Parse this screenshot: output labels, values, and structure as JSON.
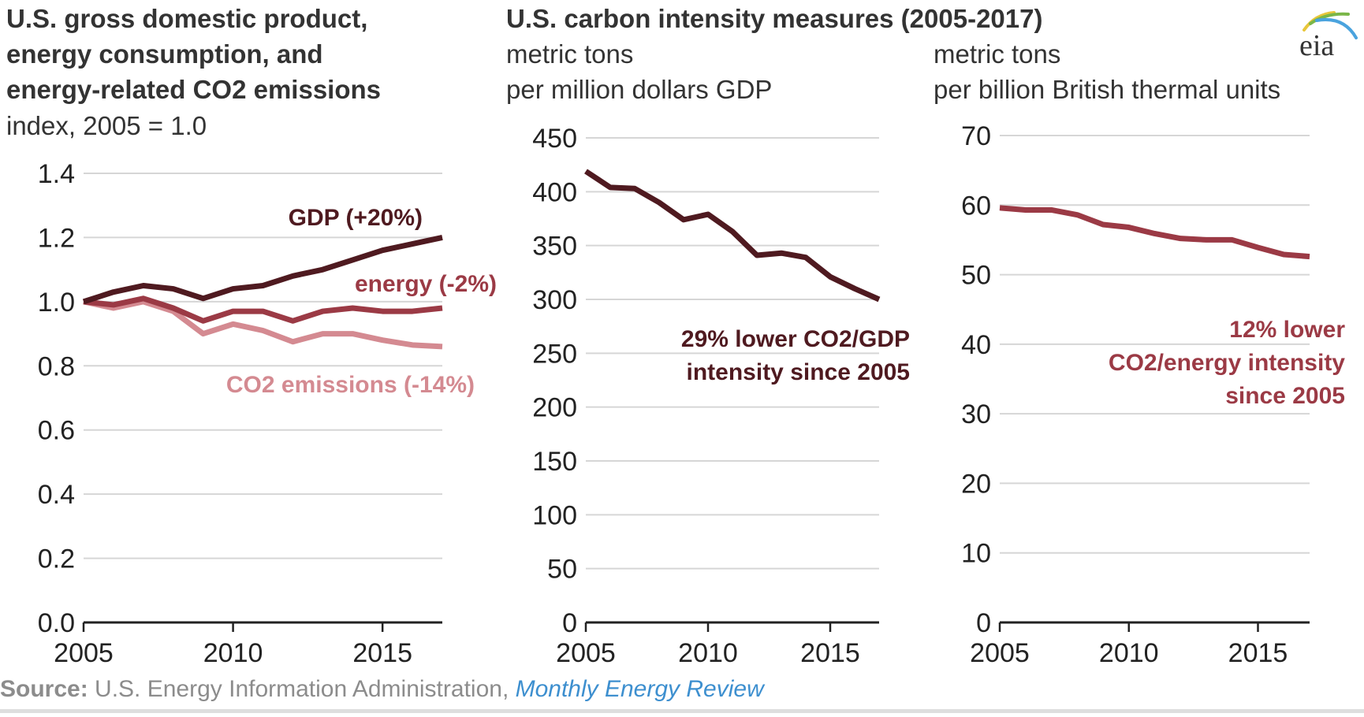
{
  "header": {
    "left_title_lines": [
      "U.S. gross domestic product,",
      "energy consumption, and",
      "energy-related CO2 emissions"
    ],
    "left_subtitle": "index, 2005 = 1.0",
    "right_title": "U.S. carbon intensity measures (2005-2017)",
    "middle_unit_lines": [
      "metric tons",
      "per million dollars GDP"
    ],
    "right_unit_lines": [
      "metric tons",
      "per billion British thermal units"
    ],
    "logo_text": "eia"
  },
  "source": {
    "label": "Source:",
    "text": " U.S. Energy Information Administration, ",
    "link_text": "Monthly Energy Review"
  },
  "colors": {
    "gdp": "#4f1a20",
    "energy": "#9b3a45",
    "co2": "#d48a91",
    "intensity_gdp": "#4f1a20",
    "intensity_energy": "#9b3a45",
    "grid": "#d6d6d6",
    "axis": "#222222"
  },
  "chart_data": [
    {
      "type": "line",
      "title": "U.S. gross domestic product, energy consumption, and energy-related CO2 emissions",
      "ylabel": "index, 2005 = 1.0",
      "xlabel": "",
      "x": [
        2005,
        2006,
        2007,
        2008,
        2009,
        2010,
        2011,
        2012,
        2013,
        2014,
        2015,
        2016,
        2017
      ],
      "xlim": [
        2005,
        2017
      ],
      "xticks": [
        2005,
        2010,
        2015
      ],
      "ylim": [
        0,
        1.4
      ],
      "yticks": [
        "0.0",
        "0.2",
        "0.4",
        "0.6",
        "0.8",
        "1.0",
        "1.2",
        "1.4"
      ],
      "grid": true,
      "series": [
        {
          "name": "GDP (+20%)",
          "key": "gdp",
          "values": [
            1.0,
            1.03,
            1.05,
            1.04,
            1.01,
            1.04,
            1.05,
            1.08,
            1.1,
            1.13,
            1.16,
            1.18,
            1.2
          ]
        },
        {
          "name": "energy (-2%)",
          "key": "energy",
          "values": [
            1.0,
            0.99,
            1.01,
            0.98,
            0.94,
            0.97,
            0.97,
            0.94,
            0.97,
            0.98,
            0.97,
            0.97,
            0.98
          ]
        },
        {
          "name": "CO2 emissions (-14%)",
          "key": "co2",
          "values": [
            1.0,
            0.98,
            1.0,
            0.97,
            0.9,
            0.93,
            0.91,
            0.875,
            0.9,
            0.9,
            0.88,
            0.865,
            0.86
          ]
        }
      ],
      "annotations": [
        {
          "text": "GDP (+20%)",
          "key": "gdp"
        },
        {
          "text": "energy (-2%)",
          "key": "energy"
        },
        {
          "text": "CO2 emissions (-14%)",
          "key": "co2"
        }
      ]
    },
    {
      "type": "line",
      "title": "U.S. carbon intensity measures (2005-2017)",
      "ylabel": "metric tons per million dollars GDP",
      "xlabel": "",
      "x": [
        2005,
        2006,
        2007,
        2008,
        2009,
        2010,
        2011,
        2012,
        2013,
        2014,
        2015,
        2016,
        2017
      ],
      "xlim": [
        2005,
        2017
      ],
      "xticks": [
        2005,
        2010,
        2015
      ],
      "ylim": [
        0,
        450
      ],
      "yticks": [
        "0",
        "50",
        "100",
        "150",
        "200",
        "250",
        "300",
        "350",
        "400",
        "450"
      ],
      "grid": true,
      "series": [
        {
          "name": "CO2/GDP intensity",
          "key": "intensity_gdp",
          "values": [
            419,
            404,
            403,
            390,
            374,
            379,
            363,
            341,
            343,
            339,
            321,
            310,
            300
          ]
        }
      ],
      "annotations": [
        {
          "lines": [
            "29% lower CO2/GDP",
            "intensity since 2005"
          ],
          "key": "intensity_gdp"
        }
      ]
    },
    {
      "type": "line",
      "title": "U.S. carbon intensity measures (2005-2017)",
      "ylabel": "metric tons per billion British thermal units",
      "xlabel": "",
      "x": [
        2005,
        2006,
        2007,
        2008,
        2009,
        2010,
        2011,
        2012,
        2013,
        2014,
        2015,
        2016,
        2017
      ],
      "xlim": [
        2005,
        2017
      ],
      "xticks": [
        2005,
        2010,
        2015
      ],
      "ylim": [
        0,
        70
      ],
      "yticks": [
        "0",
        "10",
        "20",
        "30",
        "40",
        "50",
        "60",
        "70"
      ],
      "grid": true,
      "series": [
        {
          "name": "CO2/energy intensity",
          "key": "intensity_energy",
          "values": [
            59.6,
            59.3,
            59.3,
            58.6,
            57.2,
            56.8,
            55.9,
            55.2,
            55.0,
            55.0,
            53.9,
            52.9,
            52.6
          ]
        }
      ],
      "annotations": [
        {
          "lines": [
            "12% lower",
            "CO2/energy intensity",
            "since 2005"
          ],
          "key": "intensity_energy"
        }
      ]
    }
  ]
}
